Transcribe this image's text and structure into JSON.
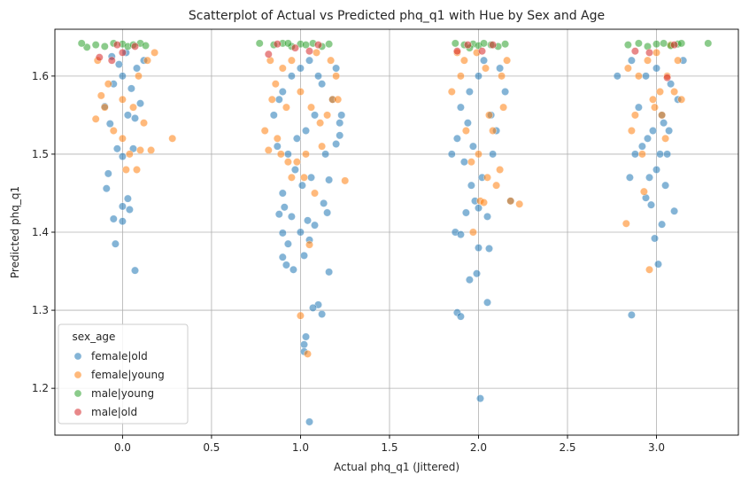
{
  "chart_data": {
    "type": "scatter",
    "title": "Scatterplot of Actual vs Predicted phq_q1 with Hue by Sex and Age",
    "xlabel": "Actual phq_q1 (Jittered)",
    "ylabel": "Predicted phq_q1",
    "xlim": [
      -0.38,
      3.46
    ],
    "ylim": [
      1.14,
      1.66
    ],
    "xticks": [
      0.0,
      0.5,
      1.0,
      1.5,
      2.0,
      2.5,
      3.0
    ],
    "xtick_labels": [
      "0.0",
      "0.5",
      "1.0",
      "1.5",
      "2.0",
      "2.5",
      "3.0"
    ],
    "yticks": [
      1.2,
      1.3,
      1.4,
      1.5,
      1.6
    ],
    "ytick_labels": [
      "1.2",
      "1.3",
      "1.4",
      "1.5",
      "1.6"
    ],
    "grid": true,
    "legend": {
      "title": "sex_age",
      "placement": "lower-left",
      "entries": [
        "female|old",
        "female|young",
        "male|young",
        "male|old"
      ]
    },
    "series": [
      {
        "name": "female|old",
        "color": "#1f77b4",
        "points": [
          [
            -0.08,
            1.475
          ],
          [
            -0.09,
            1.456
          ],
          [
            0.03,
            1.443
          ],
          [
            0.0,
            1.433
          ],
          [
            0.04,
            1.429
          ],
          [
            -0.05,
            1.417
          ],
          [
            0.0,
            1.414
          ],
          [
            -0.04,
            1.385
          ],
          [
            0.07,
            1.351
          ],
          [
            -0.03,
            1.507
          ],
          [
            0.0,
            1.497
          ],
          [
            0.06,
            1.507
          ],
          [
            -0.07,
            1.539
          ],
          [
            0.03,
            1.55
          ],
          [
            0.07,
            1.546
          ],
          [
            -0.1,
            1.561
          ],
          [
            0.1,
            1.565
          ],
          [
            0.05,
            1.584
          ],
          [
            -0.05,
            1.59
          ],
          [
            0.0,
            1.6
          ],
          [
            0.08,
            1.61
          ],
          [
            -0.02,
            1.615
          ],
          [
            0.12,
            1.62
          ],
          [
            0.02,
            1.63
          ],
          [
            -0.06,
            1.625
          ],
          [
            1.05,
            1.157
          ],
          [
            1.03,
            1.266
          ],
          [
            1.02,
            1.256
          ],
          [
            1.02,
            1.247
          ],
          [
            1.1,
            1.307
          ],
          [
            1.07,
            1.303
          ],
          [
            1.12,
            1.295
          ],
          [
            1.16,
            1.349
          ],
          [
            0.9,
            1.368
          ],
          [
            0.92,
            1.358
          ],
          [
            0.96,
            1.352
          ],
          [
            0.93,
            1.385
          ],
          [
            0.9,
            1.399
          ],
          [
            1.0,
            1.4
          ],
          [
            1.05,
            1.39
          ],
          [
            1.02,
            1.37
          ],
          [
            0.95,
            1.42
          ],
          [
            0.88,
            1.423
          ],
          [
            0.91,
            1.432
          ],
          [
            1.04,
            1.415
          ],
          [
            1.08,
            1.409
          ],
          [
            1.15,
            1.425
          ],
          [
            1.13,
            1.437
          ],
          [
            1.16,
            1.467
          ],
          [
            1.2,
            1.513
          ],
          [
            1.22,
            1.524
          ],
          [
            1.22,
            1.54
          ],
          [
            1.23,
            1.55
          ],
          [
            0.85,
            1.55
          ],
          [
            0.88,
            1.57
          ],
          [
            0.9,
            1.58
          ],
          [
            0.95,
            1.6
          ],
          [
            1.0,
            1.61
          ],
          [
            1.05,
            1.62
          ],
          [
            1.1,
            1.6
          ],
          [
            1.12,
            1.59
          ],
          [
            1.08,
            1.55
          ],
          [
            1.03,
            1.53
          ],
          [
            0.98,
            1.52
          ],
          [
            0.93,
            1.5
          ],
          [
            0.97,
            1.48
          ],
          [
            1.01,
            1.46
          ],
          [
            0.9,
            1.45
          ],
          [
            1.06,
            1.47
          ],
          [
            1.14,
            1.5
          ],
          [
            1.18,
            1.57
          ],
          [
            0.87,
            1.51
          ],
          [
            1.2,
            1.61
          ],
          [
            1.88,
            1.297
          ],
          [
            1.9,
            1.292
          ],
          [
            1.95,
            1.339
          ],
          [
            1.99,
            1.347
          ],
          [
            2.05,
            1.31
          ],
          [
            2.01,
            1.187
          ],
          [
            1.87,
            1.4
          ],
          [
            1.9,
            1.397
          ],
          [
            2.0,
            1.38
          ],
          [
            2.06,
            1.379
          ],
          [
            1.93,
            1.425
          ],
          [
            2.0,
            1.431
          ],
          [
            1.98,
            1.44
          ],
          [
            2.05,
            1.42
          ],
          [
            1.85,
            1.5
          ],
          [
            1.88,
            1.52
          ],
          [
            1.92,
            1.49
          ],
          [
            1.96,
            1.46
          ],
          [
            2.02,
            1.47
          ],
          [
            2.08,
            1.5
          ],
          [
            2.1,
            1.53
          ],
          [
            2.15,
            1.58
          ],
          [
            2.12,
            1.61
          ],
          [
            1.9,
            1.56
          ],
          [
            1.95,
            1.58
          ],
          [
            2.0,
            1.6
          ],
          [
            2.03,
            1.62
          ],
          [
            2.07,
            1.55
          ],
          [
            2.18,
            1.44
          ],
          [
            1.97,
            1.51
          ],
          [
            1.94,
            1.54
          ],
          [
            2.86,
            1.294
          ],
          [
            2.99,
            1.392
          ],
          [
            3.01,
            1.359
          ],
          [
            2.97,
            1.435
          ],
          [
            2.94,
            1.444
          ],
          [
            3.03,
            1.41
          ],
          [
            3.0,
            1.48
          ],
          [
            3.02,
            1.5
          ],
          [
            2.96,
            1.47
          ],
          [
            2.85,
            1.47
          ],
          [
            2.88,
            1.5
          ],
          [
            3.07,
            1.53
          ],
          [
            3.1,
            1.427
          ],
          [
            3.05,
            1.46
          ],
          [
            2.92,
            1.51
          ],
          [
            2.98,
            1.53
          ],
          [
            3.03,
            1.55
          ],
          [
            2.9,
            1.56
          ],
          [
            3.12,
            1.57
          ],
          [
            3.08,
            1.59
          ],
          [
            3.0,
            1.61
          ],
          [
            2.94,
            1.6
          ],
          [
            2.86,
            1.62
          ],
          [
            2.78,
            1.6
          ],
          [
            3.15,
            1.62
          ],
          [
            3.04,
            1.54
          ],
          [
            2.95,
            1.52
          ],
          [
            3.06,
            1.5
          ]
        ]
      },
      {
        "name": "female|young",
        "color": "#ff7f0e",
        "points": [
          [
            -0.12,
            1.575
          ],
          [
            -0.15,
            1.545
          ],
          [
            -0.1,
            1.56
          ],
          [
            -0.05,
            1.53
          ],
          [
            0.0,
            1.52
          ],
          [
            0.04,
            1.5
          ],
          [
            0.02,
            1.48
          ],
          [
            0.08,
            1.48
          ],
          [
            0.1,
            1.505
          ],
          [
            0.28,
            1.52
          ],
          [
            0.16,
            1.505
          ],
          [
            0.12,
            1.54
          ],
          [
            0.06,
            1.56
          ],
          [
            0.0,
            1.57
          ],
          [
            -0.08,
            1.59
          ],
          [
            0.09,
            1.6
          ],
          [
            0.14,
            1.62
          ],
          [
            0.18,
            1.63
          ],
          [
            -0.14,
            1.62
          ],
          [
            1.0,
            1.293
          ],
          [
            1.04,
            1.244
          ],
          [
            1.05,
            1.384
          ],
          [
            1.08,
            1.45
          ],
          [
            1.02,
            1.47
          ],
          [
            0.95,
            1.47
          ],
          [
            0.93,
            1.49
          ],
          [
            0.89,
            1.5
          ],
          [
            0.87,
            1.52
          ],
          [
            0.82,
            1.505
          ],
          [
            0.8,
            1.53
          ],
          [
            0.84,
            1.57
          ],
          [
            0.86,
            1.59
          ],
          [
            0.9,
            1.61
          ],
          [
            0.95,
            1.62
          ],
          [
            1.0,
            1.58
          ],
          [
            1.06,
            1.56
          ],
          [
            1.11,
            1.54
          ],
          [
            1.15,
            1.55
          ],
          [
            1.18,
            1.57
          ],
          [
            1.2,
            1.6
          ],
          [
            1.25,
            1.466
          ],
          [
            1.21,
            1.57
          ],
          [
            1.12,
            1.51
          ],
          [
            1.03,
            1.5
          ],
          [
            0.98,
            1.49
          ],
          [
            0.92,
            1.56
          ],
          [
            0.83,
            1.62
          ],
          [
            1.17,
            1.62
          ],
          [
            1.09,
            1.63
          ],
          [
            1.97,
            1.4
          ],
          [
            2.01,
            1.44
          ],
          [
            2.03,
            1.438
          ],
          [
            1.96,
            1.49
          ],
          [
            2.05,
            1.47
          ],
          [
            2.1,
            1.46
          ],
          [
            2.12,
            1.48
          ],
          [
            2.08,
            1.53
          ],
          [
            2.14,
            1.56
          ],
          [
            2.18,
            1.44
          ],
          [
            2.23,
            1.436
          ],
          [
            1.85,
            1.58
          ],
          [
            1.9,
            1.6
          ],
          [
            1.92,
            1.62
          ],
          [
            1.99,
            1.63
          ],
          [
            2.04,
            1.61
          ],
          [
            2.06,
            1.55
          ],
          [
            2.0,
            1.5
          ],
          [
            1.93,
            1.53
          ],
          [
            2.13,
            1.6
          ],
          [
            2.16,
            1.62
          ],
          [
            1.88,
            1.63
          ],
          [
            2.83,
            1.411
          ],
          [
            2.96,
            1.352
          ],
          [
            2.93,
            1.452
          ],
          [
            2.86,
            1.53
          ],
          [
            2.88,
            1.55
          ],
          [
            2.92,
            1.5
          ],
          [
            2.98,
            1.57
          ],
          [
            3.02,
            1.58
          ],
          [
            3.06,
            1.6
          ],
          [
            3.1,
            1.58
          ],
          [
            3.14,
            1.57
          ],
          [
            3.12,
            1.62
          ],
          [
            3.05,
            1.52
          ],
          [
            2.9,
            1.6
          ],
          [
            2.84,
            1.61
          ],
          [
            2.95,
            1.62
          ],
          [
            3.0,
            1.63
          ],
          [
            3.08,
            1.64
          ],
          [
            2.99,
            1.56
          ],
          [
            3.03,
            1.55
          ]
        ]
      },
      {
        "name": "male|young",
        "color": "#2ca02c",
        "points": [
          [
            -0.2,
            1.637
          ],
          [
            -0.15,
            1.64
          ],
          [
            -0.1,
            1.638
          ],
          [
            -0.05,
            1.642
          ],
          [
            0.0,
            1.641
          ],
          [
            0.03,
            1.638
          ],
          [
            0.06,
            1.64
          ],
          [
            0.1,
            1.642
          ],
          [
            0.13,
            1.639
          ],
          [
            -0.23,
            1.642
          ],
          [
            0.77,
            1.642
          ],
          [
            0.85,
            1.64
          ],
          [
            0.9,
            1.642
          ],
          [
            0.95,
            1.638
          ],
          [
            1.0,
            1.641
          ],
          [
            1.03,
            1.64
          ],
          [
            1.07,
            1.642
          ],
          [
            1.12,
            1.638
          ],
          [
            1.16,
            1.641
          ],
          [
            0.93,
            1.642
          ],
          [
            1.87,
            1.642
          ],
          [
            1.92,
            1.64
          ],
          [
            1.97,
            1.641
          ],
          [
            2.0,
            1.639
          ],
          [
            2.03,
            1.642
          ],
          [
            2.07,
            1.64
          ],
          [
            2.11,
            1.638
          ],
          [
            2.15,
            1.641
          ],
          [
            1.95,
            1.636
          ],
          [
            2.84,
            1.64
          ],
          [
            2.9,
            1.642
          ],
          [
            2.95,
            1.638
          ],
          [
            3.0,
            1.641
          ],
          [
            3.04,
            1.642
          ],
          [
            3.08,
            1.639
          ],
          [
            3.12,
            1.641
          ],
          [
            3.29,
            1.642
          ],
          [
            3.14,
            1.642
          ]
        ]
      },
      {
        "name": "male|old",
        "color": "#d62728",
        "points": [
          [
            -0.13,
            1.624
          ],
          [
            -0.06,
            1.62
          ],
          [
            0.0,
            1.63
          ],
          [
            0.07,
            1.638
          ],
          [
            -0.03,
            1.64
          ],
          [
            0.82,
            1.628
          ],
          [
            0.87,
            1.641
          ],
          [
            0.97,
            1.636
          ],
          [
            1.05,
            1.632
          ],
          [
            1.1,
            1.64
          ],
          [
            1.88,
            1.632
          ],
          [
            1.94,
            1.64
          ],
          [
            2.02,
            1.632
          ],
          [
            2.08,
            1.64
          ],
          [
            2.88,
            1.632
          ],
          [
            2.96,
            1.63
          ],
          [
            3.06,
            1.598
          ],
          [
            3.1,
            1.64
          ]
        ]
      }
    ]
  }
}
